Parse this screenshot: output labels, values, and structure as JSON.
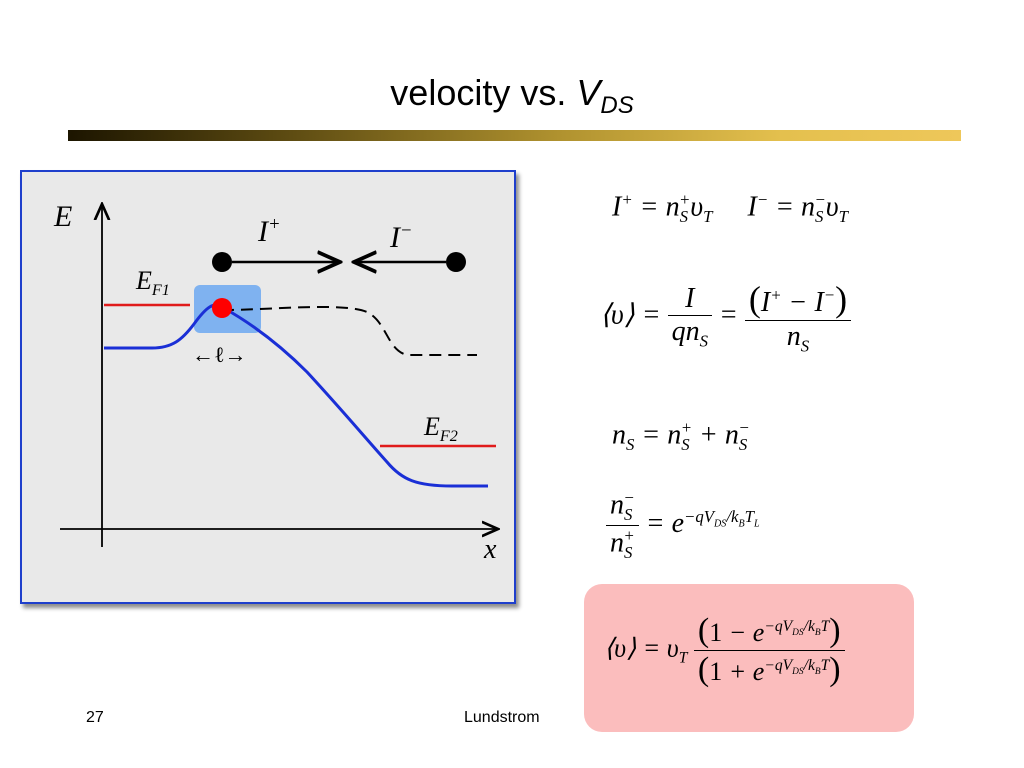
{
  "slide": {
    "title_text": "velocity vs. ",
    "title_var": "V",
    "title_sub": "DS",
    "page_number": "27",
    "author": "Lundstrom"
  },
  "diagram": {
    "y_axis_label": "E",
    "x_axis_label": "x",
    "ef1_base": "E",
    "ef1_sub": "F1",
    "ef2_base": "E",
    "ef2_sub": "F2",
    "i_plus_base": "I",
    "i_plus_sup": "+",
    "i_minus_base": "I",
    "i_minus_sup": "−",
    "length_label": "←ℓ→",
    "colors": {
      "frame": "#1f3fcc",
      "band": "#1a2fd6",
      "fermi": "#e01b1b",
      "electron": "#ff0000",
      "highlight": "#7fb2f0",
      "panel": "#e9e9e9"
    }
  },
  "equations": {
    "currents": "I⁺ = n_S⁺ υ_T     I⁻ = n_S⁻ υ_T",
    "avg_velocity": "⟨υ⟩ = I / (q n_S) = (I⁺ − I⁻) / n_S",
    "density_sum": "n_S = n_S⁺ + n_S⁻",
    "density_ratio": "n_S⁻ / n_S⁺ = e^(−qV_DS/k_B T_L)",
    "result": "⟨υ⟩ = υ_T (1 − e^(−qV_DS/k_B T)) / (1 + e^(−qV_DS/k_B T))",
    "result_box_color": "#fbbdbd"
  }
}
